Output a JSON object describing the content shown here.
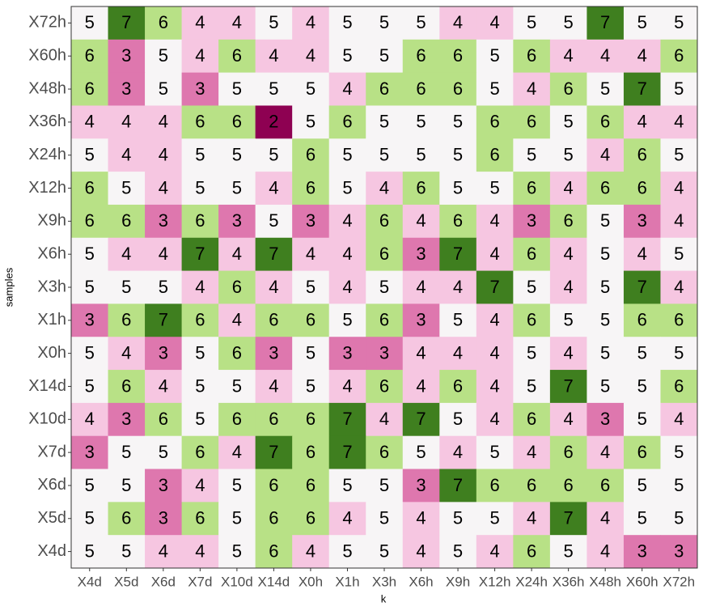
{
  "chart_data": {
    "type": "heatmap",
    "x_label": "k",
    "y_label": "samples",
    "x_categories": [
      "X4d",
      "X5d",
      "X6d",
      "X7d",
      "X10d",
      "X14d",
      "X0h",
      "X1h",
      "X3h",
      "X6h",
      "X9h",
      "X12h",
      "X24h",
      "X36h",
      "X48h",
      "X60h",
      "X72h"
    ],
    "y_categories": [
      "X72h",
      "X60h",
      "X48h",
      "X36h",
      "X24h",
      "X12h",
      "X9h",
      "X6h",
      "X3h",
      "X1h",
      "X0h",
      "X14d",
      "X10d",
      "X7d",
      "X6d",
      "X5d",
      "X4d"
    ],
    "values": [
      [
        5,
        7,
        6,
        4,
        4,
        5,
        4,
        5,
        5,
        5,
        4,
        4,
        5,
        5,
        7,
        5,
        5
      ],
      [
        6,
        3,
        5,
        4,
        6,
        4,
        4,
        5,
        5,
        6,
        6,
        5,
        6,
        4,
        4,
        4,
        6
      ],
      [
        6,
        3,
        5,
        3,
        5,
        5,
        5,
        4,
        6,
        6,
        6,
        5,
        4,
        6,
        5,
        7,
        5
      ],
      [
        4,
        4,
        4,
        6,
        6,
        2,
        5,
        6,
        5,
        5,
        5,
        6,
        6,
        5,
        6,
        4,
        4
      ],
      [
        5,
        4,
        4,
        5,
        5,
        5,
        6,
        5,
        5,
        5,
        5,
        6,
        5,
        5,
        4,
        6,
        5
      ],
      [
        6,
        5,
        4,
        5,
        5,
        4,
        6,
        5,
        4,
        6,
        5,
        5,
        6,
        4,
        6,
        6,
        4
      ],
      [
        6,
        6,
        3,
        6,
        3,
        5,
        3,
        4,
        6,
        4,
        6,
        4,
        3,
        6,
        5,
        3,
        4
      ],
      [
        5,
        4,
        4,
        7,
        4,
        7,
        4,
        4,
        6,
        3,
        7,
        4,
        6,
        4,
        5,
        4,
        5
      ],
      [
        5,
        5,
        5,
        4,
        6,
        4,
        5,
        4,
        5,
        4,
        4,
        7,
        5,
        4,
        5,
        7,
        4
      ],
      [
        3,
        6,
        7,
        6,
        4,
        6,
        6,
        5,
        6,
        3,
        5,
        4,
        6,
        5,
        5,
        6,
        6
      ],
      [
        5,
        4,
        3,
        5,
        6,
        3,
        5,
        3,
        3,
        4,
        4,
        4,
        5,
        4,
        5,
        5,
        5
      ],
      [
        5,
        6,
        4,
        5,
        5,
        4,
        5,
        4,
        6,
        4,
        6,
        4,
        5,
        7,
        5,
        5,
        6
      ],
      [
        4,
        3,
        6,
        5,
        6,
        6,
        6,
        7,
        4,
        7,
        5,
        4,
        6,
        4,
        3,
        5,
        4
      ],
      [
        3,
        5,
        5,
        6,
        4,
        7,
        6,
        7,
        6,
        5,
        4,
        5,
        4,
        6,
        4,
        6,
        5
      ],
      [
        5,
        5,
        3,
        4,
        5,
        6,
        6,
        5,
        5,
        3,
        7,
        6,
        6,
        6,
        6,
        5,
        5
      ],
      [
        5,
        6,
        3,
        6,
        5,
        6,
        6,
        4,
        5,
        4,
        5,
        5,
        4,
        7,
        4,
        5,
        5
      ],
      [
        5,
        5,
        4,
        4,
        5,
        6,
        4,
        5,
        5,
        4,
        5,
        4,
        6,
        5,
        4,
        3,
        3
      ]
    ],
    "color_scale": {
      "domain": [
        2,
        3,
        4,
        5,
        6,
        7
      ],
      "colors": [
        "#8e0152",
        "#de77ae",
        "#f6c6e1",
        "#f7f5f6",
        "#b8e186",
        "#3f7f1f"
      ]
    }
  }
}
